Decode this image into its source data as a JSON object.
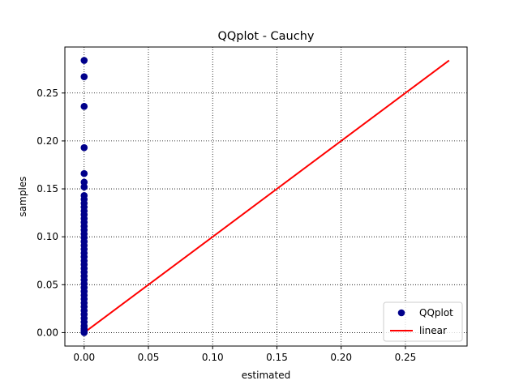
{
  "chart_data": {
    "type": "scatter",
    "title": "QQplot - Cauchy",
    "xlabel": "estimated",
    "ylabel": "samples",
    "xlim": [
      -0.015,
      0.298
    ],
    "ylim": [
      -0.014,
      0.298
    ],
    "xticks": [
      0.0,
      0.05,
      0.1,
      0.15,
      0.2,
      0.25
    ],
    "yticks": [
      0.0,
      0.05,
      0.1,
      0.15,
      0.2,
      0.25
    ],
    "xtick_labels": [
      "0.00",
      "0.05",
      "0.10",
      "0.15",
      "0.20",
      "0.25"
    ],
    "ytick_labels": [
      "0.00",
      "0.05",
      "0.10",
      "0.15",
      "0.20",
      "0.25"
    ],
    "grid": true,
    "legend_position": "bottom-right",
    "series": [
      {
        "name": "QQplot",
        "kind": "scatter",
        "color": "#00008b",
        "points": [
          [
            0.0,
            0.284
          ],
          [
            0.0,
            0.267
          ],
          [
            0.0,
            0.236
          ],
          [
            0.0,
            0.193
          ],
          [
            0.0,
            0.166
          ],
          [
            0.0,
            0.157
          ],
          [
            0.0,
            0.152
          ],
          [
            0.0,
            0.143
          ],
          [
            0.0,
            0.139
          ],
          [
            0.0,
            0.135
          ],
          [
            0.0,
            0.131
          ],
          [
            0.0,
            0.127
          ],
          [
            0.0,
            0.123
          ],
          [
            0.0,
            0.119
          ],
          [
            0.0,
            0.115
          ],
          [
            0.0,
            0.111
          ],
          [
            0.0,
            0.107
          ],
          [
            0.0,
            0.103
          ],
          [
            0.0,
            0.099
          ],
          [
            0.0,
            0.095
          ],
          [
            0.0,
            0.091
          ],
          [
            0.0,
            0.087
          ],
          [
            0.0,
            0.083
          ],
          [
            0.0,
            0.079
          ],
          [
            0.0,
            0.075
          ],
          [
            0.0,
            0.071
          ],
          [
            0.0,
            0.067
          ],
          [
            0.0,
            0.063
          ],
          [
            0.0,
            0.059
          ],
          [
            0.0,
            0.055
          ],
          [
            0.0,
            0.051
          ],
          [
            0.0,
            0.047
          ],
          [
            0.0,
            0.043
          ],
          [
            0.0,
            0.039
          ],
          [
            0.0,
            0.035
          ],
          [
            0.0,
            0.031
          ],
          [
            0.0,
            0.027
          ],
          [
            0.0,
            0.023
          ],
          [
            0.0,
            0.019
          ],
          [
            0.0,
            0.015
          ],
          [
            0.0,
            0.011
          ],
          [
            0.0,
            0.007
          ],
          [
            0.0,
            0.004
          ],
          [
            0.0,
            0.002
          ],
          [
            0.0,
            0.0
          ]
        ]
      },
      {
        "name": "linear",
        "kind": "line",
        "color": "#ff0000",
        "points": [
          [
            0.0,
            0.0
          ],
          [
            0.284,
            0.284
          ]
        ]
      }
    ]
  }
}
